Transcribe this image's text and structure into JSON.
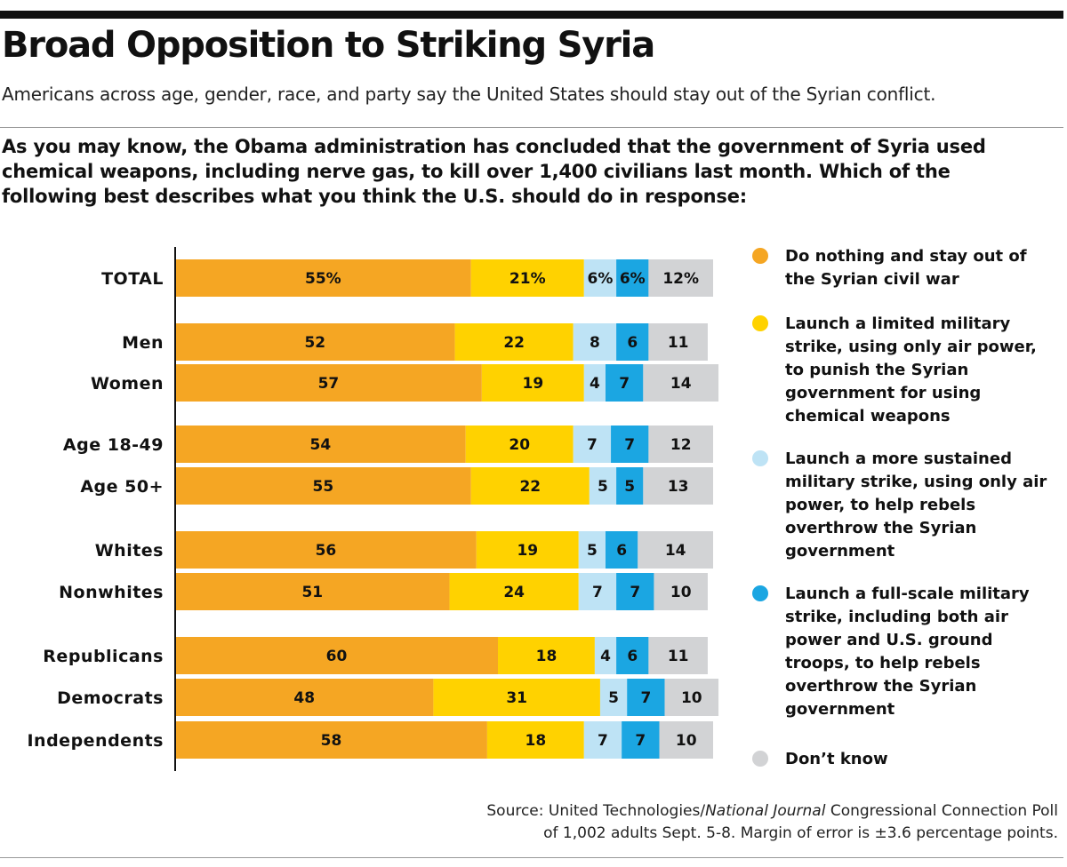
{
  "header": {
    "title": "Broad Opposition to Striking Syria",
    "subtitle": "Americans across age, gender, race, and party say the United States should stay out of the Syrian conflict.",
    "question_lines": [
      "As you may know, the Obama administration has concluded that the government of Syria used",
      "chemical weapons, including nerve gas, to kill over 1,400 civilians last month. Which of the",
      "following best describes what you think the U.S. should do in response:"
    ]
  },
  "colors": {
    "do_nothing": "#F5A623",
    "limited": "#FFD200",
    "sustained": "#BEE3F5",
    "full_scale": "#1BA6E2",
    "dont_know": "#D2D3D5",
    "text": "#111111"
  },
  "legend": [
    {
      "label": "Do nothing and stay out of the Syrian civil war",
      "color": "#F5A623",
      "icon": "orange-dot-icon"
    },
    {
      "label": "Launch a limited military strike, using only air power, to punish the Syrian government for using chemical weapons",
      "color": "#FFD200",
      "icon": "yellow-dot-icon"
    },
    {
      "label": "Launch a more sustained military strike, using only air power, to help rebels overthrow the Syrian government",
      "color": "#BEE3F5",
      "icon": "light-blue-dot-icon"
    },
    {
      "label": "Launch a full-scale military strike, including both air power and U.S. ground troops, to help rebels overthrow the Syrian government",
      "color": "#1BA6E2",
      "icon": "blue-dot-icon"
    },
    {
      "label": "Don’t know",
      "color": "#D2D3D5",
      "icon": "gray-dot-icon"
    }
  ],
  "chart_data": {
    "type": "bar",
    "orientation": "horizontal",
    "stacked": true,
    "unit": "percent",
    "categories": [
      "TOTAL",
      "Men",
      "Women",
      "Age 18-49",
      "Age 50+",
      "Whites",
      "Nonwhites",
      "Republicans",
      "Democrats",
      "Independents"
    ],
    "groups": [
      [
        "TOTAL"
      ],
      [
        "Men",
        "Women"
      ],
      [
        "Age 18-49",
        "Age 50+"
      ],
      [
        "Whites",
        "Nonwhites"
      ],
      [
        "Republicans",
        "Democrats",
        "Independents"
      ]
    ],
    "series": [
      {
        "name": "Do nothing and stay out of the Syrian civil war",
        "color": "#F5A623",
        "values": [
          55,
          52,
          57,
          54,
          55,
          56,
          51,
          60,
          48,
          58
        ]
      },
      {
        "name": "Launch a limited military strike, using only air power, to punish the Syrian government for using chemical weapons",
        "color": "#FFD200",
        "values": [
          21,
          22,
          19,
          20,
          22,
          19,
          24,
          18,
          31,
          18
        ]
      },
      {
        "name": "Launch a more sustained military strike, using only air power, to help rebels overthrow the Syrian government",
        "color": "#BEE3F5",
        "values": [
          6,
          8,
          4,
          7,
          5,
          5,
          7,
          4,
          5,
          7
        ]
      },
      {
        "name": "Launch a full-scale military strike, including both air power and U.S. ground troops, to help rebels overthrow the Syrian government",
        "color": "#1BA6E2",
        "values": [
          6,
          6,
          7,
          7,
          5,
          6,
          7,
          6,
          7,
          7
        ]
      },
      {
        "name": "Don’t know",
        "color": "#D2D3D5",
        "values": [
          12,
          11,
          14,
          12,
          13,
          14,
          10,
          11,
          10,
          10
        ]
      }
    ],
    "value_labels": [
      [
        "55%",
        "21%",
        "6%",
        "6%",
        "12%"
      ],
      [
        "52",
        "22",
        "8",
        "6",
        "11"
      ],
      [
        "57",
        "19",
        "4",
        "7",
        "14"
      ],
      [
        "54",
        "20",
        "7",
        "7",
        "12"
      ],
      [
        "55",
        "22",
        "5",
        "5",
        "13"
      ],
      [
        "56",
        "19",
        "5",
        "6",
        "14"
      ],
      [
        "51",
        "24",
        "7",
        "7",
        "10"
      ],
      [
        "60",
        "18",
        "4",
        "6",
        "11"
      ],
      [
        "48",
        "31",
        "5",
        "7",
        "10"
      ],
      [
        "58",
        "18",
        "7",
        "7",
        "10"
      ]
    ],
    "xlim": [
      0,
      100
    ],
    "grid": false,
    "legend_position": "right"
  },
  "source": {
    "line1_prefix": "Source: United Technologies/",
    "line1_italic": "National Journal",
    "line1_suffix": " Congressional Connection Poll",
    "line2": "of 1,002 adults Sept. 5-8. Margin of error is ±3.6 percentage points."
  }
}
